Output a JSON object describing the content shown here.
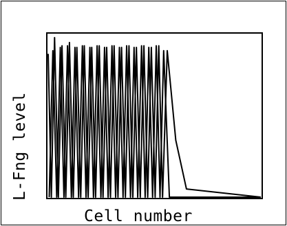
{
  "chart_data": {
    "type": "line",
    "title": "",
    "xlabel": "Cell number",
    "ylabel": "L-Fng level",
    "xlim": [
      0,
      100
    ],
    "ylim": [
      0,
      1
    ],
    "grid": false,
    "legend": "none",
    "line_color": "#000000",
    "series": [
      {
        "values": [
          0.88,
          0.0,
          0.98,
          0.0,
          0.93,
          0.0,
          0.95,
          0.0,
          0.92,
          0.0,
          0.93,
          0.0,
          0.92,
          0.0,
          0.93,
          0.0,
          0.92,
          0.0,
          0.93,
          0.0,
          0.92,
          0.0,
          0.93,
          0.0,
          0.92,
          0.0,
          0.93,
          0.0,
          0.92,
          0.0,
          0.93,
          0.0,
          0.9,
          0.35,
          0.05,
          0.0
        ],
        "x": [
          0,
          1.5,
          3,
          4.8,
          6.5,
          8.3,
          10,
          11.8,
          13.5,
          15.3,
          17,
          18.8,
          20.5,
          22.3,
          24,
          25.8,
          27.5,
          29.3,
          31,
          32.8,
          34.5,
          36.3,
          38,
          39.8,
          41.5,
          43.3,
          45,
          46.8,
          48.5,
          50.3,
          52,
          53.8,
          56,
          60,
          65,
          100
        ]
      },
      {
        "values": [
          0.0,
          0.9,
          0.0,
          0.92,
          0.0,
          0.93,
          0.0,
          0.92,
          0.0,
          0.93,
          0.0,
          0.92,
          0.0,
          0.93,
          0.0,
          0.92,
          0.0,
          0.93,
          0.0,
          0.92,
          0.0,
          0.93,
          0.0,
          0.92,
          0.0,
          0.93,
          0.0,
          0.92,
          0.0,
          0.93,
          0.0,
          0.9,
          0.0,
          0.0
        ],
        "x": [
          0.5,
          2.2,
          4,
          5.7,
          7.4,
          9.1,
          10.9,
          12.6,
          14.3,
          16.1,
          17.8,
          19.6,
          21.3,
          23,
          24.8,
          26.5,
          28.2,
          30,
          31.7,
          33.5,
          35.2,
          36.9,
          38.7,
          40.4,
          42.1,
          43.9,
          45.6,
          47.3,
          49.1,
          50.8,
          52.6,
          54.3,
          57,
          100
        ]
      }
    ]
  }
}
